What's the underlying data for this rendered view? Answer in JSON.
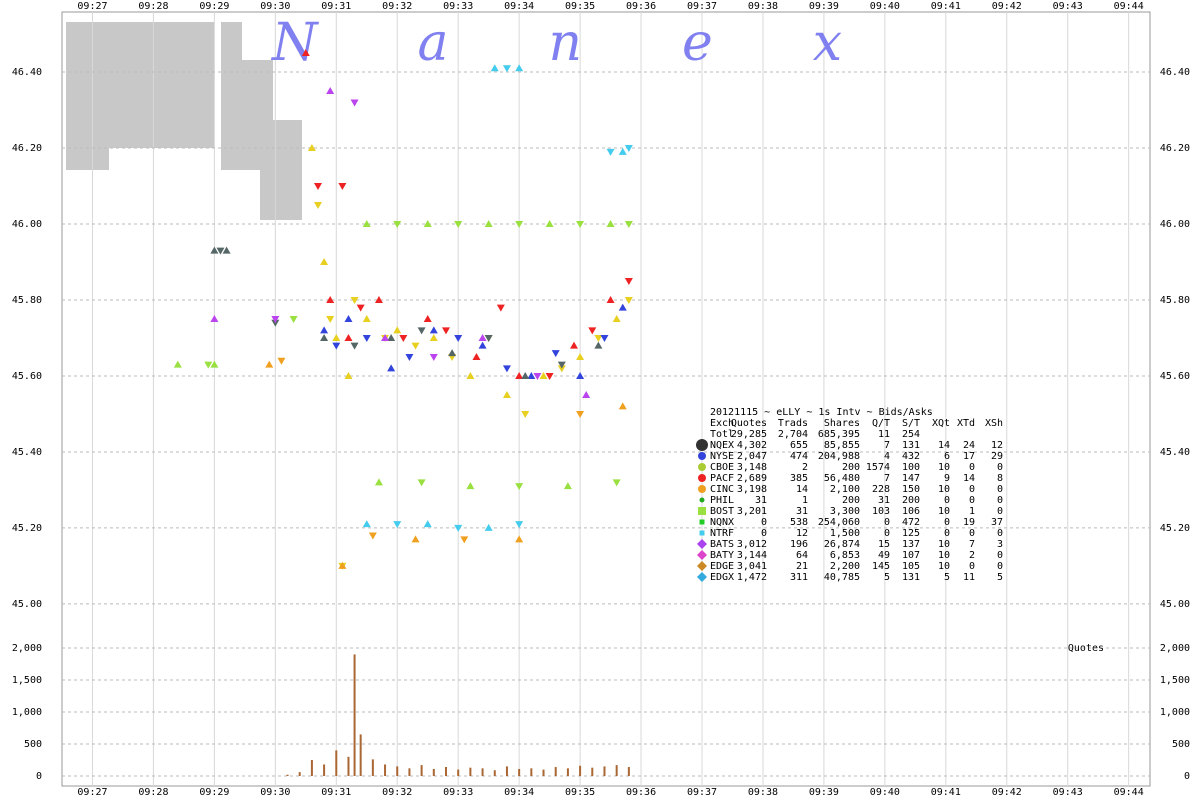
{
  "chart_data": [
    {
      "type": "scatter",
      "watermark": "Nanex",
      "xlim": [
        566.5,
        584.35
      ],
      "xticks": [
        {
          "value": 567,
          "label": "09:27"
        },
        {
          "value": 568,
          "label": "09:28"
        },
        {
          "value": 569,
          "label": "09:29"
        },
        {
          "value": 570,
          "label": "09:30"
        },
        {
          "value": 571,
          "label": "09:31"
        },
        {
          "value": 572,
          "label": "09:32"
        },
        {
          "value": 573,
          "label": "09:33"
        },
        {
          "value": 574,
          "label": "09:34"
        },
        {
          "value": 575,
          "label": "09:35"
        },
        {
          "value": 576,
          "label": "09:36"
        },
        {
          "value": 577,
          "label": "09:37"
        },
        {
          "value": 578,
          "label": "09:38"
        },
        {
          "value": 579,
          "label": "09:39"
        },
        {
          "value": 580,
          "label": "09:40"
        },
        {
          "value": 581,
          "label": "09:41"
        },
        {
          "value": 582,
          "label": "09:42"
        },
        {
          "value": 583,
          "label": "09:43"
        },
        {
          "value": 584,
          "label": "09:44"
        }
      ],
      "ylim": [
        44.905,
        46.537
      ],
      "yticks": [
        {
          "value": 45.0,
          "label": "45.00"
        },
        {
          "value": 45.2,
          "label": "45.20"
        },
        {
          "value": 45.4,
          "label": "45.40"
        },
        {
          "value": 45.6,
          "label": "45.60"
        },
        {
          "value": 45.8,
          "label": "45.80"
        },
        {
          "value": 46.0,
          "label": "46.00"
        },
        {
          "value": 46.2,
          "label": "46.20"
        },
        {
          "value": 46.4,
          "label": "46.40"
        }
      ],
      "grid": true,
      "series": [
        {
          "color": "#e8d020",
          "x": [
            570.6,
            570.7,
            570.8,
            570.9,
            571.0,
            571.1,
            571.2,
            571.3,
            571.5,
            571.8,
            572.0,
            572.3,
            572.6,
            572.9,
            573.2,
            573.5,
            573.8,
            574.1,
            574.4,
            574.7,
            575.0,
            575.3,
            575.6,
            575.8
          ],
          "values": [
            46.2,
            46.05,
            45.9,
            45.75,
            45.7,
            45.1,
            45.6,
            45.8,
            45.75,
            45.7,
            45.72,
            45.68,
            45.7,
            45.65,
            45.6,
            45.7,
            45.55,
            45.5,
            45.6,
            45.62,
            45.65,
            45.7,
            45.75,
            45.8
          ]
        },
        {
          "color": "#ee2222",
          "x": [
            570.5,
            570.7,
            570.9,
            571.1,
            571.2,
            571.4,
            571.7,
            572.1,
            572.5,
            572.8,
            573.3,
            573.7,
            574.0,
            574.5,
            574.9,
            575.2,
            575.5,
            575.8
          ],
          "values": [
            46.45,
            46.1,
            45.8,
            46.1,
            45.7,
            45.78,
            45.8,
            45.7,
            45.75,
            45.72,
            45.65,
            45.78,
            45.6,
            45.6,
            45.68,
            45.72,
            45.8,
            45.85
          ]
        },
        {
          "color": "#3344dd",
          "x": [
            570.8,
            571.0,
            571.2,
            571.5,
            571.9,
            572.2,
            572.6,
            573.0,
            573.4,
            573.8,
            574.2,
            574.6,
            575.0,
            575.4,
            575.7
          ],
          "values": [
            45.72,
            45.68,
            45.75,
            45.7,
            45.62,
            45.65,
            45.72,
            45.7,
            45.68,
            45.62,
            45.6,
            45.66,
            45.6,
            45.7,
            45.78
          ]
        },
        {
          "color": "#556666",
          "x": [
            569.0,
            569.1,
            569.2,
            570.0,
            570.8,
            571.3,
            571.9,
            572.4,
            572.9,
            573.5,
            574.1,
            574.7,
            575.3
          ],
          "values": [
            45.93,
            45.93,
            45.93,
            45.74,
            45.7,
            45.68,
            45.7,
            45.72,
            45.66,
            45.7,
            45.6,
            45.63,
            45.68
          ]
        },
        {
          "color": "#99e040",
          "x": [
            568.4,
            568.9,
            569.0,
            570.3,
            571.5,
            572.0,
            572.5,
            573.0,
            573.5,
            574.0,
            574.5,
            575.0,
            575.5,
            575.8,
            571.7,
            572.4,
            573.2,
            574.0,
            574.8,
            575.6
          ],
          "values": [
            45.63,
            45.63,
            45.63,
            45.75,
            46.0,
            46.0,
            46.0,
            46.0,
            46.0,
            46.0,
            46.0,
            46.0,
            46.0,
            46.0,
            45.32,
            45.32,
            45.31,
            45.31,
            45.31,
            45.32
          ]
        },
        {
          "color": "#44ccee",
          "x": [
            573.6,
            573.8,
            574.0,
            575.5,
            575.7,
            575.8,
            571.5,
            572.0,
            572.5,
            573.0,
            573.5,
            574.0
          ],
          "values": [
            46.41,
            46.41,
            46.41,
            46.19,
            46.19,
            46.2,
            45.21,
            45.21,
            45.21,
            45.2,
            45.2,
            45.21
          ]
        },
        {
          "color": "#bb44ee",
          "x": [
            569.0,
            570.0,
            570.9,
            571.3,
            571.8,
            572.6,
            573.4,
            574.3,
            575.1
          ],
          "values": [
            45.75,
            45.75,
            46.35,
            46.32,
            45.7,
            45.65,
            45.7,
            45.6,
            45.55
          ]
        },
        {
          "color": "#f0a020",
          "x": [
            569.9,
            570.1,
            571.1,
            571.6,
            572.3,
            573.1,
            574.0,
            575.0,
            575.7
          ],
          "values": [
            45.63,
            45.64,
            45.1,
            45.18,
            45.17,
            45.17,
            45.17,
            45.5,
            45.52
          ]
        }
      ]
    },
    {
      "type": "bar",
      "ylabel": "Quotes",
      "color": "#aa6633",
      "xlim": [
        566.5,
        584.35
      ],
      "xticks": [
        {
          "value": 567,
          "label": "09:27"
        },
        {
          "value": 568,
          "label": "09:28"
        },
        {
          "value": 569,
          "label": "09:29"
        },
        {
          "value": 570,
          "label": "09:30"
        },
        {
          "value": 571,
          "label": "09:31"
        },
        {
          "value": 572,
          "label": "09:32"
        },
        {
          "value": 573,
          "label": "09:33"
        },
        {
          "value": 574,
          "label": "09:34"
        },
        {
          "value": 575,
          "label": "09:35"
        },
        {
          "value": 576,
          "label": "09:36"
        },
        {
          "value": 577,
          "label": "09:37"
        },
        {
          "value": 578,
          "label": "09:38"
        },
        {
          "value": 579,
          "label": "09:39"
        },
        {
          "value": 580,
          "label": "09:40"
        },
        {
          "value": 581,
          "label": "09:41"
        },
        {
          "value": 582,
          "label": "09:42"
        },
        {
          "value": 583,
          "label": "09:43"
        },
        {
          "value": 584,
          "label": "09:44"
        }
      ],
      "ylim": [
        0,
        2000
      ],
      "yticks": [
        0,
        500,
        {
          "value": 1000,
          "label": "1,000"
        },
        {
          "value": 1500,
          "label": "1,500"
        },
        {
          "value": 2000,
          "label": "2,000"
        }
      ],
      "grid": true,
      "x": [
        570.2,
        570.4,
        570.6,
        570.8,
        571.0,
        571.2,
        571.3,
        571.4,
        571.6,
        571.8,
        572.0,
        572.2,
        572.4,
        572.6,
        572.8,
        573.0,
        573.2,
        573.4,
        573.6,
        573.8,
        574.0,
        574.2,
        574.4,
        574.6,
        574.8,
        575.0,
        575.2,
        575.4,
        575.6,
        575.8
      ],
      "values": [
        20,
        60,
        250,
        180,
        400,
        300,
        1900,
        650,
        260,
        180,
        150,
        120,
        170,
        110,
        140,
        100,
        130,
        120,
        90,
        150,
        110,
        120,
        100,
        140,
        120,
        160,
        130,
        150,
        170,
        140
      ]
    }
  ],
  "stats_table": {
    "title": "20121115 ~ eLLY ~ 1s Intv ~ Bids/Asks",
    "columns": [
      "Exch",
      "Quotes",
      "Trads",
      "Shares",
      "Q/T",
      "S/T",
      "XQt",
      "XTd",
      "XSh"
    ],
    "rows": [
      {
        "cells": [
          "Totl",
          "29,285",
          "2,704",
          "685,395",
          "11",
          "254"
        ]
      },
      {
        "color": "#333333",
        "marker": "big-circle",
        "cells": [
          "NQEX",
          "4,302",
          "655",
          "85,855",
          "7",
          "131",
          "14",
          "24",
          "12"
        ]
      },
      {
        "color": "#3344dd",
        "marker": "circle",
        "cells": [
          "NYSE",
          "2,047",
          "474",
          "204,988",
          "4",
          "432",
          "6",
          "17",
          "29"
        ]
      },
      {
        "color": "#aacc33",
        "marker": "circle",
        "cells": [
          "CBOE",
          "3,148",
          "2",
          "200",
          "1574",
          "100",
          "10",
          "0",
          "0"
        ]
      },
      {
        "color": "#ee2222",
        "marker": "circle",
        "cells": [
          "PACF",
          "2,689",
          "385",
          "56,480",
          "7",
          "147",
          "9",
          "14",
          "8"
        ]
      },
      {
        "color": "#f0a020",
        "marker": "circle",
        "cells": [
          "CINC",
          "3,198",
          "14",
          "2,100",
          "228",
          "150",
          "10",
          "0",
          "0"
        ]
      },
      {
        "color": "#22aa22",
        "marker": "small-circle",
        "cells": [
          "PHIL",
          "31",
          "1",
          "200",
          "31",
          "200",
          "0",
          "0",
          "0"
        ]
      },
      {
        "color": "#99e040",
        "marker": "square",
        "cells": [
          "BOST",
          "3,201",
          "31",
          "3,300",
          "103",
          "106",
          "10",
          "1",
          "0"
        ]
      },
      {
        "color": "#22cc22",
        "marker": "small-square",
        "cells": [
          "NQNX",
          "0",
          "538",
          "254,060",
          "0",
          "472",
          "0",
          "19",
          "37"
        ]
      },
      {
        "color": "#44ccee",
        "marker": "small-square",
        "cells": [
          "NTRF",
          "0",
          "12",
          "1,500",
          "0",
          "125",
          "0",
          "0",
          "0"
        ]
      },
      {
        "color": "#aa44ee",
        "marker": "diamond",
        "cells": [
          "BATS",
          "3,012",
          "196",
          "26,874",
          "15",
          "137",
          "10",
          "7",
          "3"
        ]
      },
      {
        "color": "#dd44cc",
        "marker": "diamond",
        "cells": [
          "BATY",
          "3,144",
          "64",
          "6,853",
          "49",
          "107",
          "10",
          "2",
          "0"
        ]
      },
      {
        "color": "#cc8822",
        "marker": "diamond",
        "cells": [
          "EDGE",
          "3,041",
          "21",
          "2,200",
          "145",
          "105",
          "10",
          "0",
          "0"
        ]
      },
      {
        "color": "#33aadd",
        "marker": "diamond",
        "cells": [
          "EDGX",
          "1,472",
          "311",
          "40,785",
          "5",
          "131",
          "5",
          "11",
          "5"
        ]
      }
    ]
  }
}
